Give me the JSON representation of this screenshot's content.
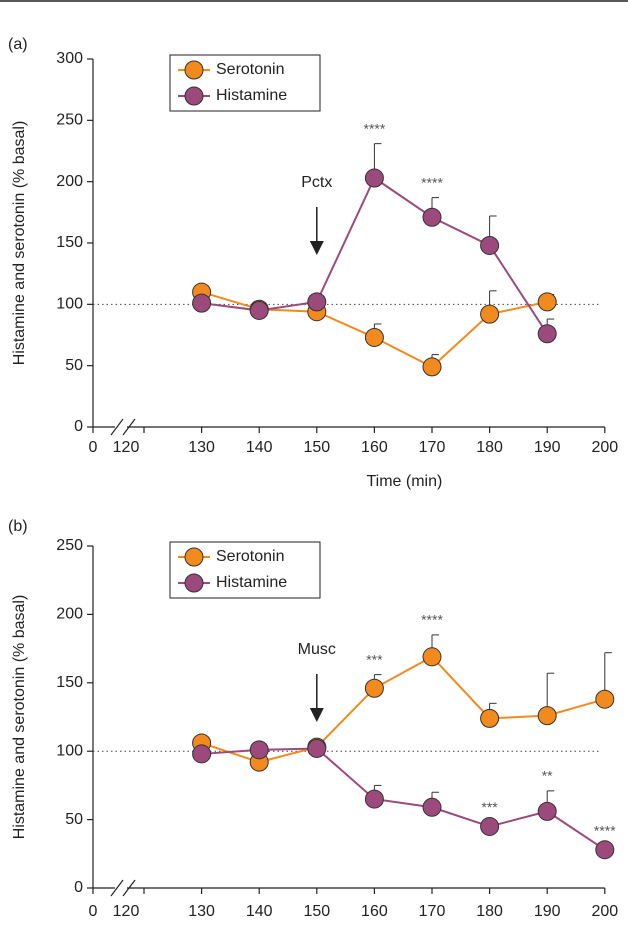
{
  "chart_data": [
    {
      "type": "line",
      "title": "(a)",
      "ylabel": "Histamine and serotonin (% basal)",
      "xlabel": "Time (min)",
      "xlim": [
        0,
        200
      ],
      "xticks": [
        0,
        120,
        130,
        140,
        150,
        160,
        170,
        180,
        190,
        200
      ],
      "ylim": [
        0,
        300
      ],
      "yticks": [
        0,
        50,
        100,
        150,
        200,
        250,
        300
      ],
      "hline": 100,
      "series": [
        {
          "name": "Serotonin",
          "color": "#f28a1e",
          "x": [
            130,
            140,
            150,
            160,
            170,
            180,
            190
          ],
          "values": [
            110,
            96,
            94,
            73,
            49,
            92,
            102
          ],
          "errors": [
            5,
            4,
            3,
            11,
            10,
            19,
            6
          ]
        },
        {
          "name": "Histamine",
          "color": "#9c4a7c",
          "x": [
            130,
            140,
            150,
            160,
            170,
            180,
            190
          ],
          "values": [
            101,
            95,
            102,
            203,
            171,
            148,
            76
          ],
          "errors": [
            3,
            4,
            3,
            28,
            16,
            24,
            12
          ]
        }
      ],
      "annotations": [
        {
          "text": "****",
          "x": 160,
          "series": 1
        },
        {
          "text": "****",
          "x": 170,
          "series": 1
        }
      ],
      "arrow": {
        "text": "Pctx",
        "x": 150
      }
    },
    {
      "type": "line",
      "title": "(b)",
      "ylabel": "Histamine and serotonin (% basal)",
      "xlim": [
        0,
        200
      ],
      "xticks": [
        0,
        120,
        130,
        140,
        150,
        160,
        170,
        180,
        190,
        200
      ],
      "ylim": [
        0,
        250
      ],
      "yticks": [
        0,
        50,
        100,
        150,
        200,
        250
      ],
      "hline": 100,
      "series": [
        {
          "name": "Serotonin",
          "color": "#f28a1e",
          "x": [
            130,
            140,
            150,
            160,
            170,
            180,
            190,
            200
          ],
          "values": [
            106,
            92,
            103,
            146,
            169,
            124,
            126,
            138
          ],
          "errors": [
            3,
            3,
            3,
            10,
            16,
            11,
            31,
            34
          ]
        },
        {
          "name": "Histamine",
          "color": "#9c4a7c",
          "x": [
            130,
            140,
            150,
            160,
            170,
            180,
            190,
            200
          ],
          "values": [
            98,
            101,
            102,
            65,
            59,
            45,
            56,
            28
          ],
          "errors": [
            3,
            4,
            3,
            10,
            11,
            3,
            15,
            3
          ]
        }
      ],
      "annotations": [
        {
          "text": "***",
          "x": 160,
          "series": 0
        },
        {
          "text": "****",
          "x": 170,
          "series": 0
        },
        {
          "text": "***",
          "x": 180,
          "series": 1
        },
        {
          "text": "**",
          "x": 190,
          "series": 1
        },
        {
          "text": "****",
          "x": 200,
          "series": 1
        }
      ],
      "arrow": {
        "text": "Musc",
        "x": 150
      }
    }
  ]
}
